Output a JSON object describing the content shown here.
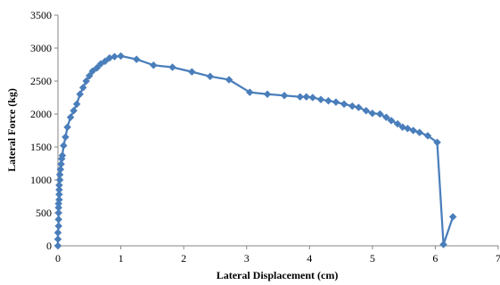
{
  "chart_data": {
    "type": "scatter",
    "xlabel": "Lateral Displacement (cm)",
    "ylabel": "Lateral Force (kg)",
    "xlim": [
      0,
      7
    ],
    "ylim": [
      0,
      3500
    ],
    "x_ticks": [
      "0",
      "1",
      "2",
      "3",
      "4",
      "5",
      "6",
      "7"
    ],
    "y_ticks": [
      "0",
      "500",
      "1000",
      "1500",
      "2000",
      "2500",
      "3000",
      "3500"
    ],
    "grid": false,
    "legend": "none",
    "series": [
      {
        "color": "#4a7ebb",
        "marker": "diamond",
        "line": true,
        "x": [
          0.0,
          0.0,
          0.0,
          0.01,
          0.01,
          0.01,
          0.01,
          0.01,
          0.02,
          0.02,
          0.02,
          0.02,
          0.03,
          0.03,
          0.04,
          0.05,
          0.06,
          0.07,
          0.09,
          0.12,
          0.15,
          0.2,
          0.25,
          0.3,
          0.35,
          0.4,
          0.45,
          0.5,
          0.55,
          0.62,
          0.68,
          0.75,
          0.82,
          0.9,
          1.0,
          1.25,
          1.52,
          1.82,
          2.13,
          2.42,
          2.72,
          3.05,
          3.33,
          3.6,
          3.85,
          3.95,
          4.05,
          4.18,
          4.3,
          4.42,
          4.55,
          4.68,
          4.78,
          4.9,
          5.0,
          5.12,
          5.22,
          5.3,
          5.4,
          5.48,
          5.56,
          5.65,
          5.75,
          5.88,
          6.03,
          6.13,
          6.28
        ],
        "y": [
          0,
          100,
          200,
          300,
          400,
          500,
          580,
          640,
          700,
          780,
          850,
          920,
          1000,
          1080,
          1160,
          1240,
          1320,
          1370,
          1520,
          1650,
          1800,
          1950,
          2050,
          2150,
          2300,
          2400,
          2500,
          2580,
          2650,
          2700,
          2760,
          2800,
          2850,
          2870,
          2880,
          2830,
          2740,
          2710,
          2640,
          2570,
          2520,
          2330,
          2300,
          2280,
          2260,
          2260,
          2250,
          2220,
          2200,
          2180,
          2150,
          2120,
          2100,
          2050,
          2010,
          2000,
          1950,
          1900,
          1850,
          1800,
          1780,
          1750,
          1720,
          1670,
          1570,
          20,
          440
        ]
      }
    ]
  }
}
